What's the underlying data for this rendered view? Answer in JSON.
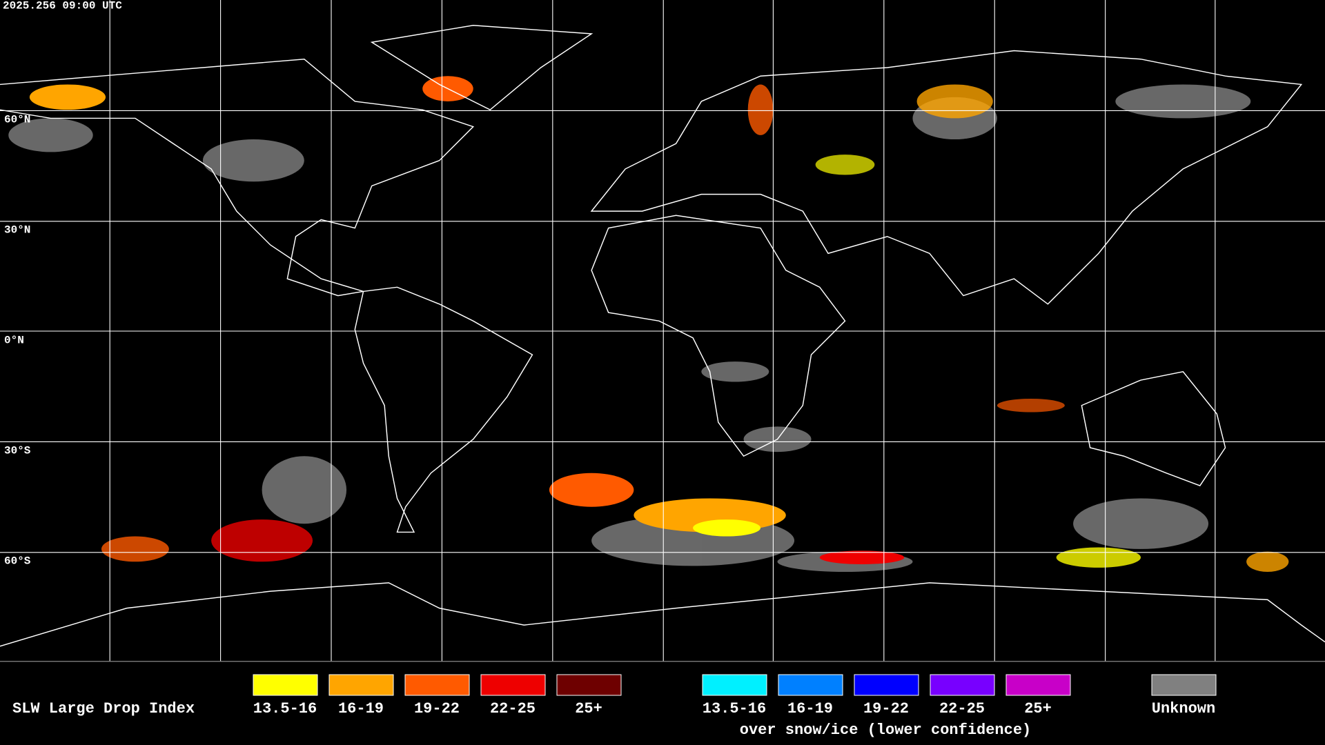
{
  "header": {
    "timestamp": "2025.256 09:00 UTC"
  },
  "map": {
    "latitude_labels": [
      "60°N",
      "30°N",
      "0°N",
      "30°S",
      "60°S"
    ]
  },
  "legend": {
    "title": "SLW Large Drop Index",
    "standard": [
      {
        "label": "13.5-16",
        "color": "#ffff00"
      },
      {
        "label": "16-19",
        "color": "#ffa500"
      },
      {
        "label": "19-22",
        "color": "#ff5a00"
      },
      {
        "label": "22-25",
        "color": "#ee0000"
      },
      {
        "label": "25+",
        "color": "#6e0000"
      }
    ],
    "snow_ice": {
      "items": [
        {
          "label": "13.5-16",
          "color": "#00f0ff"
        },
        {
          "label": "16-19",
          "color": "#0080ff"
        },
        {
          "label": "19-22",
          "color": "#0000ff"
        },
        {
          "label": "22-25",
          "color": "#7800ff"
        },
        {
          "label": "25+",
          "color": "#c800c8"
        }
      ],
      "caption": "over snow/ice (lower confidence)"
    },
    "unknown": {
      "label": "Unknown",
      "color": "#808080"
    }
  }
}
